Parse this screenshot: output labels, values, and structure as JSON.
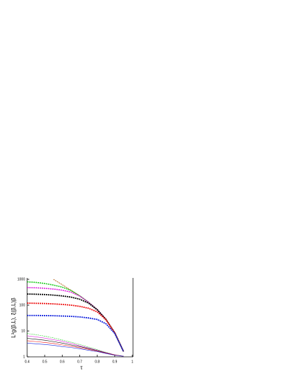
{
  "chart_data": {
    "type": "line",
    "xlabel": "τ",
    "ylabel": "L³g(β,L), ξ(β,L)β",
    "x": [
      0.4,
      0.45,
      0.5,
      0.55,
      0.6,
      0.65,
      0.7,
      0.75,
      0.8,
      0.85,
      0.9,
      0.95
    ],
    "xlim": [
      0.4,
      1
    ],
    "xticks": [
      0.4,
      0.5,
      0.6,
      0.7,
      0.8,
      0.9,
      1
    ],
    "ylim": [
      1,
      1000
    ],
    "yticks": [
      1,
      10,
      100,
      1000
    ],
    "log_y": true,
    "series": [
      {
        "color": "#b5651d",
        "dash": true,
        "width": 1,
        "values": [
          null,
          null,
          null,
          1000,
          620,
          380,
          230,
          130,
          68,
          28,
          8.5,
          1.6
        ]
      },
      {
        "color": "#22cc22",
        "dash": true,
        "width": 1.6,
        "values": [
          800,
          760,
          690,
          600,
          500,
          370,
          230,
          130,
          68,
          28,
          8.5,
          1.6
        ]
      },
      {
        "color": "#dd22dd",
        "dash": true,
        "width": 1.6,
        "values": [
          480,
          470,
          450,
          420,
          380,
          320,
          225,
          130,
          68,
          28,
          8.5,
          1.6
        ]
      },
      {
        "color": "#000000",
        "dash": true,
        "width": 1.8,
        "values": [
          270,
          265,
          258,
          245,
          228,
          205,
          170,
          120,
          66,
          28,
          8.5,
          1.6
        ]
      },
      {
        "color": "#ee1111",
        "dash": true,
        "width": 1.8,
        "values": [
          120,
          118,
          116,
          112,
          107,
          100,
          90,
          76,
          55,
          27,
          8.5,
          1.6
        ]
      },
      {
        "color": "#1122dd",
        "dash": true,
        "width": 1.8,
        "values": [
          40,
          40,
          39.5,
          39,
          38,
          37,
          35,
          32,
          28,
          19,
          8,
          1.6
        ]
      },
      {
        "color": "#22cc22",
        "dash": true,
        "width": 0.6,
        "values": [
          8,
          7.2,
          6.3,
          5.4,
          4.5,
          3.7,
          3,
          2.4,
          1.9,
          1.5,
          1.2,
          1.05
        ]
      },
      {
        "color": "#dd22dd",
        "dash": false,
        "width": 0.6,
        "values": [
          6.5,
          5.9,
          5.3,
          4.6,
          4,
          3.3,
          2.7,
          2.2,
          1.8,
          1.45,
          1.2,
          1.05
        ]
      },
      {
        "color": "#000000",
        "dash": false,
        "width": 0.6,
        "values": [
          5.2,
          4.8,
          4.4,
          3.9,
          3.4,
          2.9,
          2.5,
          2.1,
          1.75,
          1.4,
          1.18,
          1.05
        ]
      },
      {
        "color": "#ee1111",
        "dash": false,
        "width": 0.6,
        "values": [
          4.2,
          3.9,
          3.6,
          3.3,
          2.9,
          2.6,
          2.25,
          1.95,
          1.65,
          1.38,
          1.17,
          1.05
        ]
      },
      {
        "color": "#1122dd",
        "dash": false,
        "width": 0.6,
        "values": [
          3.4,
          3.2,
          3,
          2.8,
          2.5,
          2.3,
          2.05,
          1.8,
          1.6,
          1.35,
          1.15,
          1.05
        ]
      }
    ]
  }
}
